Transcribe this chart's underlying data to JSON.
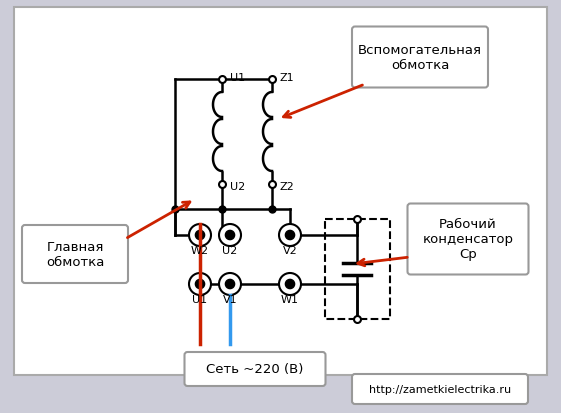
{
  "bg_color": "#ccccd8",
  "box_fill": "#ffffff",
  "box_edge": "#999999",
  "line_color": "#000000",
  "red_color": "#cc2200",
  "blue_color": "#3399ee",
  "arrow_color": "#cc2200",
  "website": "http://zametkielectrika.ru",
  "net_label": "Сеть ~220 (В)",
  "label_glavnaya": "Главная\nобмотка",
  "label_vspom": "Вспомогательная\nобмотка",
  "label_rabochiy": "Рабочий\nконденсатор\nСр",
  "fig_w": 5.61,
  "fig_h": 4.14,
  "dpi": 100
}
